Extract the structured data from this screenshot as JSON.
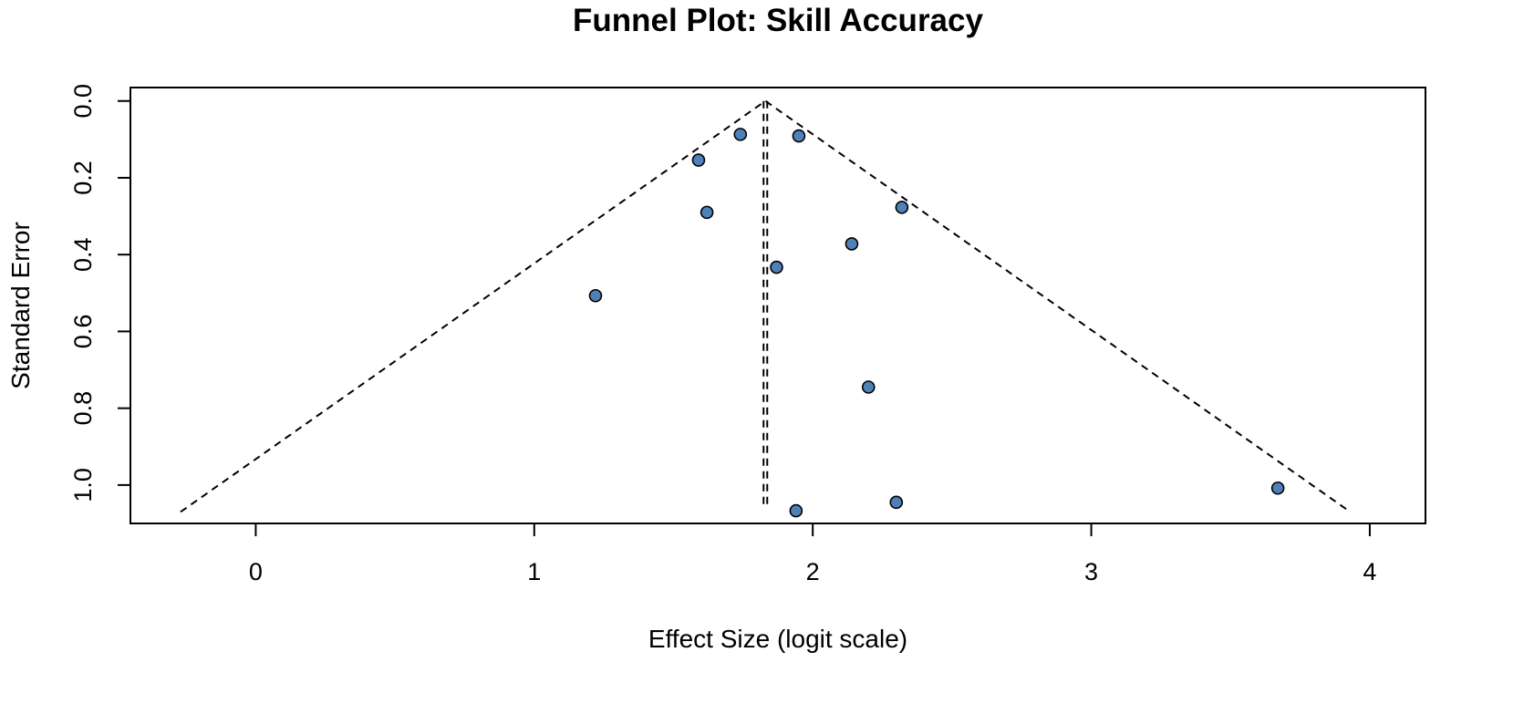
{
  "chart_data": {
    "type": "scatter",
    "title": "Funnel Plot: Skill Accuracy",
    "xlabel": "Effect Size (logit scale)",
    "ylabel": "Standard Error",
    "xlim": [
      -0.45,
      4.2
    ],
    "ylim": [
      1.1,
      -0.035
    ],
    "y_axis_reversed": true,
    "x_ticks": [
      0,
      1,
      2,
      3,
      4
    ],
    "x_tick_labels": [
      "0",
      "1",
      "2",
      "3",
      "4"
    ],
    "y_ticks": [
      0.0,
      0.2,
      0.4,
      0.6,
      0.8,
      1.0
    ],
    "y_tick_labels": [
      "0.0",
      "0.2",
      "0.4",
      "0.6",
      "0.8",
      "1.0"
    ],
    "pooled_effect": 1.83,
    "funnel": {
      "apex": [
        1.83,
        0.0
      ],
      "left_base": [
        -0.27,
        1.07
      ],
      "right_base": [
        3.93,
        1.07
      ],
      "center_bottom": [
        1.83,
        1.06
      ]
    },
    "points": [
      {
        "x": 1.74,
        "y": 0.087
      },
      {
        "x": 1.95,
        "y": 0.091
      },
      {
        "x": 1.59,
        "y": 0.154
      },
      {
        "x": 2.32,
        "y": 0.277
      },
      {
        "x": 1.62,
        "y": 0.29
      },
      {
        "x": 2.14,
        "y": 0.372
      },
      {
        "x": 1.87,
        "y": 0.433
      },
      {
        "x": 1.22,
        "y": 0.507
      },
      {
        "x": 2.2,
        "y": 0.745
      },
      {
        "x": 3.67,
        "y": 1.008
      },
      {
        "x": 2.3,
        "y": 1.045
      },
      {
        "x": 1.94,
        "y": 1.067
      }
    ],
    "point_color": "#4f81b9",
    "grid": false
  }
}
